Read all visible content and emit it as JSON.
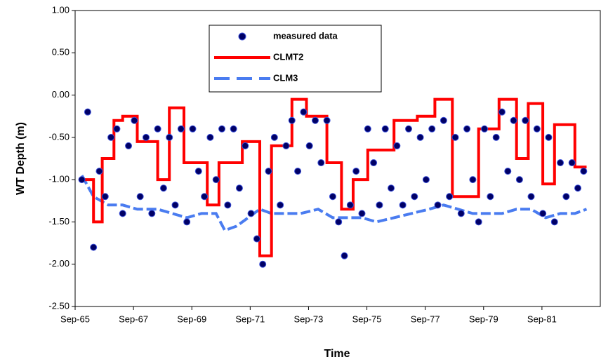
{
  "chart_data": {
    "type": "line",
    "xlabel": "Time",
    "ylabel": "WT Depth (m)",
    "xlim": [
      1965.67,
      1983.67
    ],
    "xticks": [
      {
        "value": 1965.67,
        "label": "Sep-65"
      },
      {
        "value": 1967.67,
        "label": "Sep-67"
      },
      {
        "value": 1969.67,
        "label": "Sep-69"
      },
      {
        "value": 1971.67,
        "label": "Sep-71"
      },
      {
        "value": 1973.67,
        "label": "Sep-73"
      },
      {
        "value": 1975.67,
        "label": "Sep-75"
      },
      {
        "value": 1977.67,
        "label": "Sep-77"
      },
      {
        "value": 1979.67,
        "label": "Sep-79"
      },
      {
        "value": 1981.67,
        "label": "Sep-81"
      }
    ],
    "ylim": [
      -2.5,
      1
    ],
    "yticks": [
      {
        "value": 1,
        "label": "1.00"
      },
      {
        "value": 0.5,
        "label": "0.50"
      },
      {
        "value": 0,
        "label": "0.00"
      },
      {
        "value": -0.5,
        "label": "-0.50"
      },
      {
        "value": -1,
        "label": "-1.00"
      },
      {
        "value": -1.5,
        "label": "-1.50"
      },
      {
        "value": -2,
        "label": "-2.00"
      },
      {
        "value": -2.5,
        "label": "-2.50"
      }
    ],
    "grid": false,
    "series": [
      {
        "name": "measured data",
        "style": "markers",
        "color": "#000066",
        "x": [
          1965.9,
          1966.1,
          1966.3,
          1966.5,
          1966.7,
          1966.9,
          1967.1,
          1967.3,
          1967.5,
          1967.7,
          1967.9,
          1968.1,
          1968.3,
          1968.5,
          1968.7,
          1968.9,
          1969.1,
          1969.3,
          1969.5,
          1969.7,
          1969.9,
          1970.1,
          1970.3,
          1970.5,
          1970.7,
          1970.9,
          1971.1,
          1971.3,
          1971.5,
          1971.7,
          1971.9,
          1972.1,
          1972.3,
          1972.5,
          1972.7,
          1972.9,
          1973.1,
          1973.3,
          1973.5,
          1973.7,
          1973.9,
          1974.1,
          1974.3,
          1974.5,
          1974.7,
          1974.9,
          1975.1,
          1975.3,
          1975.5,
          1975.7,
          1975.9,
          1976.1,
          1976.3,
          1976.5,
          1976.7,
          1976.9,
          1977.1,
          1977.3,
          1977.5,
          1977.7,
          1977.9,
          1978.1,
          1978.3,
          1978.5,
          1978.7,
          1978.9,
          1979.1,
          1979.3,
          1979.5,
          1979.7,
          1979.9,
          1980.1,
          1980.3,
          1980.5,
          1980.7,
          1980.9,
          1981.1,
          1981.3,
          1981.5,
          1981.7,
          1981.9,
          1982.1,
          1982.3,
          1982.5,
          1982.7,
          1982.9,
          1983.1
        ],
        "values": [
          -1.0,
          -0.2,
          -1.8,
          -0.9,
          -1.2,
          -0.5,
          -0.4,
          -1.4,
          -0.6,
          -0.3,
          -1.2,
          -0.5,
          -1.4,
          -0.4,
          -1.1,
          -0.5,
          -1.3,
          -0.4,
          -1.5,
          -0.4,
          -0.9,
          -1.2,
          -0.5,
          -1.0,
          -0.4,
          -1.3,
          -0.4,
          -1.1,
          -0.6,
          -1.4,
          -1.7,
          -2.0,
          -0.9,
          -0.5,
          -1.3,
          -0.6,
          -0.3,
          -0.9,
          -0.2,
          -0.6,
          -0.3,
          -0.8,
          -0.3,
          -1.2,
          -1.5,
          -1.9,
          -1.3,
          -0.9,
          -1.4,
          -0.4,
          -0.8,
          -1.3,
          -0.4,
          -1.1,
          -0.6,
          -1.3,
          -0.4,
          -1.2,
          -0.5,
          -1.0,
          -0.4,
          -1.3,
          -0.3,
          -1.2,
          -0.5,
          -1.4,
          -0.4,
          -1.0,
          -1.5,
          -0.4,
          -1.2,
          -0.5,
          -0.2,
          -0.9,
          -0.3,
          -1.0,
          -0.3,
          -1.2,
          -0.4,
          -1.4,
          -0.5,
          -1.5,
          -0.8,
          -1.2,
          -0.8,
          -1.1,
          -0.9
        ]
      },
      {
        "name": "CLMT2",
        "style": "solid",
        "color": "#ff0000",
        "x": [
          1965.9,
          1966.3,
          1966.3,
          1966.6,
          1966.6,
          1967.0,
          1967.0,
          1967.3,
          1967.3,
          1967.8,
          1967.8,
          1968.5,
          1968.5,
          1968.9,
          1968.9,
          1969.4,
          1969.4,
          1970.2,
          1970.2,
          1970.6,
          1970.6,
          1971.4,
          1971.4,
          1972.0,
          1972.0,
          1972.4,
          1972.4,
          1973.1,
          1973.1,
          1973.6,
          1973.6,
          1974.3,
          1974.3,
          1974.8,
          1974.8,
          1975.2,
          1975.2,
          1975.7,
          1975.7,
          1976.6,
          1976.6,
          1977.4,
          1977.4,
          1978.0,
          1978.0,
          1978.6,
          1978.6,
          1979.5,
          1979.5,
          1980.2,
          1980.2,
          1980.8,
          1980.8,
          1981.2,
          1981.2,
          1981.7,
          1981.7,
          1982.1,
          1982.1,
          1982.8,
          1982.8,
          1983.2
        ],
        "values": [
          -1.0,
          -1.0,
          -1.5,
          -1.5,
          -0.75,
          -0.75,
          -0.3,
          -0.3,
          -0.25,
          -0.25,
          -0.55,
          -0.55,
          -1.0,
          -1.0,
          -0.15,
          -0.15,
          -0.8,
          -0.8,
          -1.3,
          -1.3,
          -0.8,
          -0.8,
          -0.55,
          -0.55,
          -1.9,
          -1.9,
          -0.6,
          -0.6,
          -0.05,
          -0.05,
          -0.25,
          -0.25,
          -0.8,
          -0.8,
          -1.35,
          -1.35,
          -1.0,
          -1.0,
          -0.65,
          -0.65,
          -0.3,
          -0.3,
          -0.25,
          -0.25,
          -0.05,
          -0.05,
          -1.2,
          -1.2,
          -0.4,
          -0.4,
          -0.05,
          -0.05,
          -0.75,
          -0.75,
          -0.1,
          -0.1,
          -1.05,
          -1.05,
          -0.35,
          -0.35,
          -0.85,
          -0.85
        ]
      },
      {
        "name": "CLM3",
        "style": "dashed",
        "color": "#4a7cf0",
        "x": [
          1965.9,
          1966.3,
          1966.8,
          1967.3,
          1967.8,
          1968.5,
          1969.0,
          1969.5,
          1970.0,
          1970.5,
          1970.8,
          1971.2,
          1971.6,
          1972.0,
          1972.4,
          1973.0,
          1973.4,
          1974.0,
          1974.5,
          1975.0,
          1975.5,
          1976.0,
          1976.6,
          1977.2,
          1977.8,
          1978.3,
          1978.8,
          1979.3,
          1979.8,
          1980.3,
          1980.8,
          1981.3,
          1981.8,
          1982.3,
          1982.8,
          1983.2
        ],
        "values": [
          -0.95,
          -1.2,
          -1.3,
          -1.3,
          -1.35,
          -1.35,
          -1.4,
          -1.45,
          -1.4,
          -1.4,
          -1.6,
          -1.55,
          -1.45,
          -1.35,
          -1.4,
          -1.4,
          -1.4,
          -1.35,
          -1.45,
          -1.45,
          -1.45,
          -1.5,
          -1.45,
          -1.4,
          -1.35,
          -1.3,
          -1.35,
          -1.4,
          -1.4,
          -1.4,
          -1.35,
          -1.35,
          -1.45,
          -1.4,
          -1.4,
          -1.35
        ]
      }
    ]
  }
}
